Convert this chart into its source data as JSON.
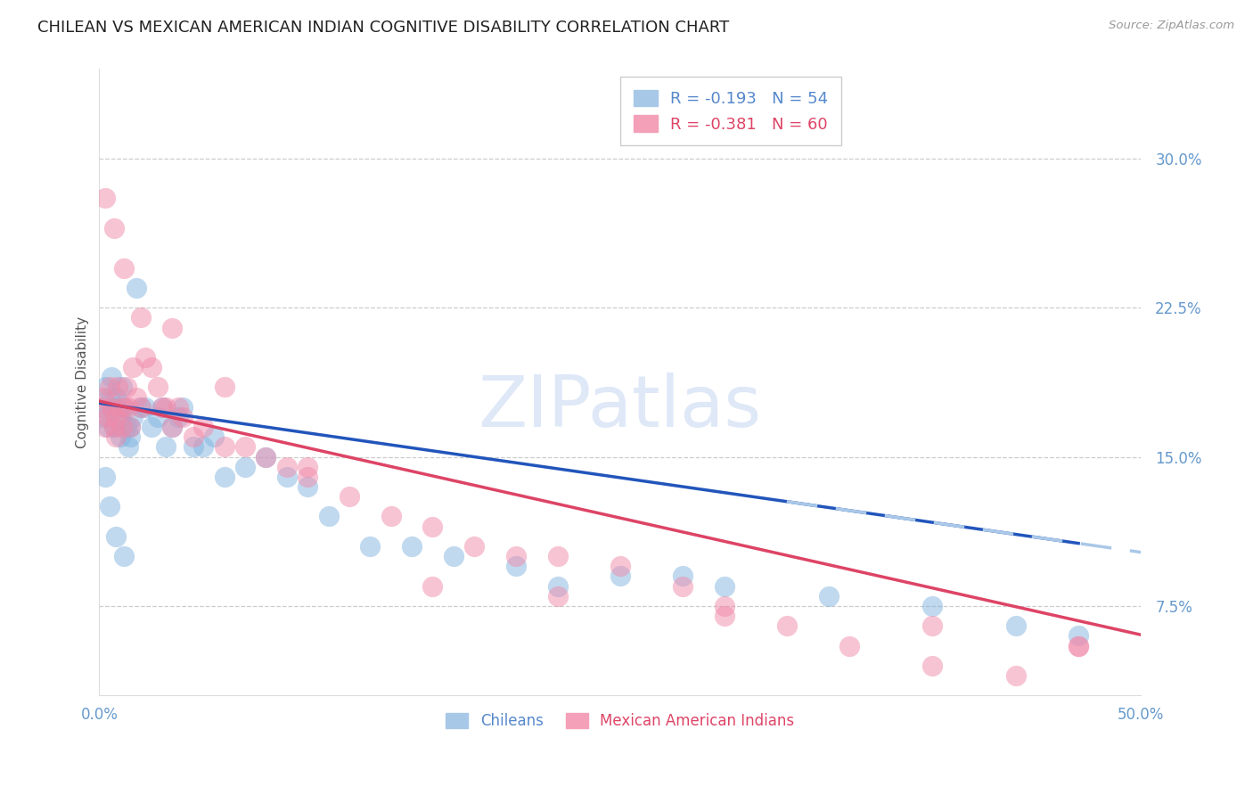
{
  "title": "CHILEAN VS MEXICAN AMERICAN INDIAN COGNITIVE DISABILITY CORRELATION CHART",
  "source": "Source: ZipAtlas.com",
  "ylabel": "Cognitive Disability",
  "ytick_labels": [
    "7.5%",
    "15.0%",
    "22.5%",
    "30.0%"
  ],
  "ytick_values": [
    0.075,
    0.15,
    0.225,
    0.3
  ],
  "xlim": [
    0.0,
    0.5
  ],
  "ylim": [
    0.03,
    0.345
  ],
  "watermark": "ZIPatlas",
  "legend_r_labels": [
    "R = -0.193   N = 54",
    "R = -0.381   N = 60"
  ],
  "legend_labels": [
    "Chileans",
    "Mexican American Indians"
  ],
  "chilean_color": "#82b4e0",
  "mexican_color": "#f08aaa",
  "trendline_chilean_color": "#2255bb",
  "trendline_mexican_color": "#dd4466",
  "trendline_dashed_color": "#aac8e8",
  "background_color": "#ffffff",
  "grid_color": "#cccccc",
  "tick_color": "#6699cc",
  "title_fontsize": 13,
  "label_fontsize": 11,
  "tick_fontsize": 12,
  "chileans_x": [
    0.001,
    0.002,
    0.003,
    0.004,
    0.005,
    0.006,
    0.006,
    0.007,
    0.008,
    0.009,
    0.01,
    0.01,
    0.011,
    0.012,
    0.013,
    0.014,
    0.015,
    0.015,
    0.016,
    0.018,
    0.02,
    0.022,
    0.025,
    0.028,
    0.03,
    0.032,
    0.035,
    0.038,
    0.04,
    0.045,
    0.05,
    0.055,
    0.06,
    0.07,
    0.08,
    0.09,
    0.1,
    0.11,
    0.13,
    0.15,
    0.17,
    0.2,
    0.22,
    0.25,
    0.28,
    0.3,
    0.35,
    0.4,
    0.44,
    0.47,
    0.003,
    0.005,
    0.008,
    0.012
  ],
  "chileans_y": [
    0.175,
    0.17,
    0.185,
    0.165,
    0.18,
    0.19,
    0.175,
    0.165,
    0.18,
    0.175,
    0.17,
    0.16,
    0.185,
    0.175,
    0.165,
    0.155,
    0.165,
    0.16,
    0.17,
    0.235,
    0.175,
    0.175,
    0.165,
    0.17,
    0.175,
    0.155,
    0.165,
    0.17,
    0.175,
    0.155,
    0.155,
    0.16,
    0.14,
    0.145,
    0.15,
    0.14,
    0.135,
    0.12,
    0.105,
    0.105,
    0.1,
    0.095,
    0.085,
    0.09,
    0.09,
    0.085,
    0.08,
    0.075,
    0.065,
    0.06,
    0.14,
    0.125,
    0.11,
    0.1
  ],
  "mexican_x": [
    0.001,
    0.002,
    0.003,
    0.004,
    0.005,
    0.006,
    0.007,
    0.008,
    0.009,
    0.01,
    0.011,
    0.012,
    0.013,
    0.014,
    0.015,
    0.016,
    0.018,
    0.02,
    0.022,
    0.025,
    0.028,
    0.03,
    0.032,
    0.035,
    0.038,
    0.04,
    0.045,
    0.05,
    0.06,
    0.07,
    0.08,
    0.09,
    0.1,
    0.12,
    0.14,
    0.16,
    0.18,
    0.2,
    0.22,
    0.25,
    0.28,
    0.3,
    0.33,
    0.36,
    0.4,
    0.44,
    0.47,
    0.003,
    0.007,
    0.012,
    0.02,
    0.035,
    0.06,
    0.1,
    0.16,
    0.22,
    0.3,
    0.4,
    0.47,
    0.008
  ],
  "mexican_y": [
    0.175,
    0.18,
    0.165,
    0.17,
    0.185,
    0.175,
    0.165,
    0.17,
    0.185,
    0.175,
    0.165,
    0.175,
    0.185,
    0.175,
    0.165,
    0.195,
    0.18,
    0.175,
    0.2,
    0.195,
    0.185,
    0.175,
    0.175,
    0.165,
    0.175,
    0.17,
    0.16,
    0.165,
    0.155,
    0.155,
    0.15,
    0.145,
    0.14,
    0.13,
    0.12,
    0.115,
    0.105,
    0.1,
    0.1,
    0.095,
    0.085,
    0.075,
    0.065,
    0.055,
    0.045,
    0.04,
    0.055,
    0.28,
    0.265,
    0.245,
    0.22,
    0.215,
    0.185,
    0.145,
    0.085,
    0.08,
    0.07,
    0.065,
    0.055,
    0.16
  ]
}
